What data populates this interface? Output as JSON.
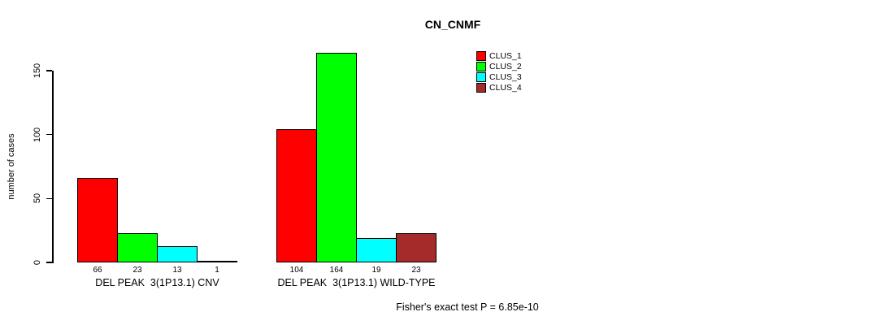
{
  "title": "CN_CNMF",
  "chart_data": {
    "type": "bar",
    "title": "CN_CNMF",
    "xlabel": "",
    "ylabel": "number of cases",
    "ylim": [
      0,
      150
    ],
    "yticks": [
      0,
      50,
      100,
      150
    ],
    "grid": false,
    "legend_position": "top-right",
    "categories": [
      "DEL PEAK  3(1P13.1) CNV",
      "DEL PEAK  3(1P13.1) WILD-TYPE"
    ],
    "series": [
      {
        "name": "CLUS_1",
        "color": "#FF0000",
        "values": [
          66,
          104
        ]
      },
      {
        "name": "CLUS_2",
        "color": "#00FF00",
        "values": [
          23,
          164
        ]
      },
      {
        "name": "CLUS_3",
        "color": "#00FFFF",
        "values": [
          13,
          19
        ]
      },
      {
        "name": "CLUS_4",
        "color": "#A52A2A",
        "values": [
          1,
          23
        ]
      }
    ],
    "annotation": "Fisher's exact test P = 6.85e-10"
  }
}
